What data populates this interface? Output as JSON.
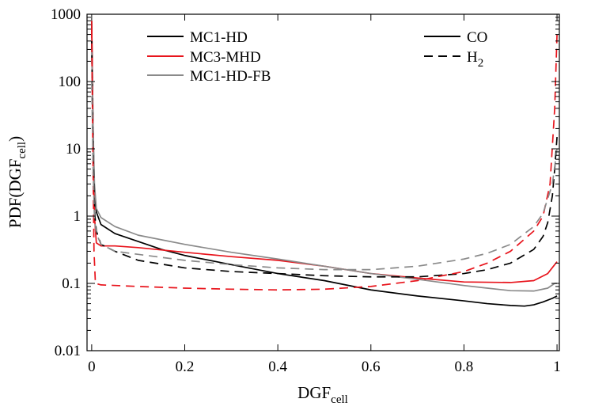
{
  "chart_data": {
    "type": "line",
    "title": "",
    "xlabel": {
      "main": "DGF",
      "sub": "cell"
    },
    "ylabel": {
      "main": "PDF(DGF",
      "sub": "cell",
      "close": ")"
    },
    "xlim": [
      -0.01,
      1.005
    ],
    "ylim": [
      0.01,
      1000
    ],
    "yscale": "log",
    "grid": false,
    "x_ticks": [
      0,
      0.2,
      0.4,
      0.6,
      0.8,
      1
    ],
    "x_tick_labels": [
      "0",
      "0.2",
      "0.4",
      "0.6",
      "0.8",
      "1"
    ],
    "y_ticks": [
      0.01,
      0.1,
      1,
      10,
      100,
      1000
    ],
    "y_tick_labels": [
      "0.01",
      "0.1",
      "1",
      "10",
      "100",
      "1000"
    ],
    "legend_models": {
      "placement": "top-left",
      "entries": [
        {
          "label": "MC1-HD",
          "color": "#000000"
        },
        {
          "label": "MC3-MHD",
          "color": "#e8141c"
        },
        {
          "label": "MC1-HD-FB",
          "color": "#8a8a8a"
        }
      ]
    },
    "legend_species": {
      "placement": "top-right",
      "entries": [
        {
          "label": "CO",
          "main": "CO",
          "sub": "",
          "style": "solid"
        },
        {
          "label": "H2",
          "main": "H",
          "sub": "2",
          "style": "dashed"
        }
      ]
    },
    "series": [
      {
        "name": "MC1-HD CO",
        "color": "#000000",
        "style": "solid",
        "points": [
          [
            0,
            800
          ],
          [
            0.003,
            20
          ],
          [
            0.006,
            2
          ],
          [
            0.01,
            1.15
          ],
          [
            0.02,
            0.75
          ],
          [
            0.05,
            0.55
          ],
          [
            0.1,
            0.42
          ],
          [
            0.15,
            0.32
          ],
          [
            0.2,
            0.26
          ],
          [
            0.3,
            0.19
          ],
          [
            0.4,
            0.14
          ],
          [
            0.5,
            0.11
          ],
          [
            0.6,
            0.08
          ],
          [
            0.7,
            0.065
          ],
          [
            0.8,
            0.055
          ],
          [
            0.85,
            0.05
          ],
          [
            0.9,
            0.047
          ],
          [
            0.93,
            0.046
          ],
          [
            0.95,
            0.048
          ],
          [
            0.97,
            0.053
          ],
          [
            0.99,
            0.06
          ],
          [
            1,
            0.065
          ]
        ]
      },
      {
        "name": "MC3-MHD CO",
        "color": "#e8141c",
        "style": "solid",
        "points": [
          [
            0,
            800
          ],
          [
            0.003,
            15
          ],
          [
            0.006,
            1
          ],
          [
            0.01,
            0.4
          ],
          [
            0.02,
            0.36
          ],
          [
            0.05,
            0.36
          ],
          [
            0.1,
            0.34
          ],
          [
            0.2,
            0.29
          ],
          [
            0.3,
            0.25
          ],
          [
            0.4,
            0.22
          ],
          [
            0.5,
            0.18
          ],
          [
            0.6,
            0.14
          ],
          [
            0.7,
            0.12
          ],
          [
            0.8,
            0.105
          ],
          [
            0.9,
            0.103
          ],
          [
            0.95,
            0.11
          ],
          [
            0.98,
            0.14
          ],
          [
            0.995,
            0.19
          ],
          [
            1,
            0.21
          ]
        ]
      },
      {
        "name": "MC1-HD-FB CO",
        "color": "#8a8a8a",
        "style": "solid",
        "points": [
          [
            0,
            300
          ],
          [
            0.003,
            20
          ],
          [
            0.006,
            3
          ],
          [
            0.01,
            1.3
          ],
          [
            0.02,
            0.95
          ],
          [
            0.05,
            0.7
          ],
          [
            0.1,
            0.52
          ],
          [
            0.2,
            0.38
          ],
          [
            0.3,
            0.29
          ],
          [
            0.4,
            0.23
          ],
          [
            0.5,
            0.18
          ],
          [
            0.6,
            0.14
          ],
          [
            0.7,
            0.115
          ],
          [
            0.8,
            0.093
          ],
          [
            0.85,
            0.085
          ],
          [
            0.9,
            0.078
          ],
          [
            0.95,
            0.077
          ],
          [
            0.98,
            0.085
          ],
          [
            0.995,
            0.1
          ],
          [
            1,
            0.1
          ]
        ]
      },
      {
        "name": "MC1-HD H2",
        "color": "#000000",
        "style": "dashed",
        "points": [
          [
            0,
            400
          ],
          [
            0.003,
            10
          ],
          [
            0.006,
            1.2
          ],
          [
            0.01,
            0.6
          ],
          [
            0.02,
            0.38
          ],
          [
            0.05,
            0.3
          ],
          [
            0.1,
            0.22
          ],
          [
            0.2,
            0.17
          ],
          [
            0.3,
            0.15
          ],
          [
            0.4,
            0.14
          ],
          [
            0.5,
            0.13
          ],
          [
            0.6,
            0.125
          ],
          [
            0.7,
            0.125
          ],
          [
            0.8,
            0.14
          ],
          [
            0.85,
            0.16
          ],
          [
            0.9,
            0.2
          ],
          [
            0.95,
            0.32
          ],
          [
            0.97,
            0.5
          ],
          [
            0.98,
            0.8
          ],
          [
            0.99,
            2
          ],
          [
            0.995,
            5
          ],
          [
            1,
            15
          ]
        ]
      },
      {
        "name": "MC3-MHD H2",
        "color": "#e8141c",
        "style": "dashed",
        "points": [
          [
            0,
            600
          ],
          [
            0.002,
            20
          ],
          [
            0.005,
            0.3
          ],
          [
            0.008,
            0.1
          ],
          [
            0.02,
            0.095
          ],
          [
            0.1,
            0.09
          ],
          [
            0.2,
            0.085
          ],
          [
            0.3,
            0.082
          ],
          [
            0.4,
            0.08
          ],
          [
            0.5,
            0.082
          ],
          [
            0.6,
            0.09
          ],
          [
            0.7,
            0.11
          ],
          [
            0.8,
            0.15
          ],
          [
            0.85,
            0.2
          ],
          [
            0.9,
            0.3
          ],
          [
            0.95,
            0.6
          ],
          [
            0.97,
            1
          ],
          [
            0.985,
            3
          ],
          [
            0.995,
            40
          ],
          [
            1,
            500
          ]
        ]
      },
      {
        "name": "MC1-HD-FB H2",
        "color": "#8a8a8a",
        "style": "dashed",
        "points": [
          [
            0,
            100
          ],
          [
            0.003,
            5
          ],
          [
            0.006,
            0.9
          ],
          [
            0.01,
            0.55
          ],
          [
            0.02,
            0.38
          ],
          [
            0.05,
            0.3
          ],
          [
            0.1,
            0.27
          ],
          [
            0.2,
            0.22
          ],
          [
            0.3,
            0.19
          ],
          [
            0.4,
            0.17
          ],
          [
            0.5,
            0.16
          ],
          [
            0.6,
            0.16
          ],
          [
            0.7,
            0.18
          ],
          [
            0.8,
            0.23
          ],
          [
            0.85,
            0.28
          ],
          [
            0.9,
            0.38
          ],
          [
            0.95,
            0.7
          ],
          [
            0.97,
            1.1
          ],
          [
            0.99,
            3
          ],
          [
            1,
            10
          ]
        ]
      }
    ]
  }
}
